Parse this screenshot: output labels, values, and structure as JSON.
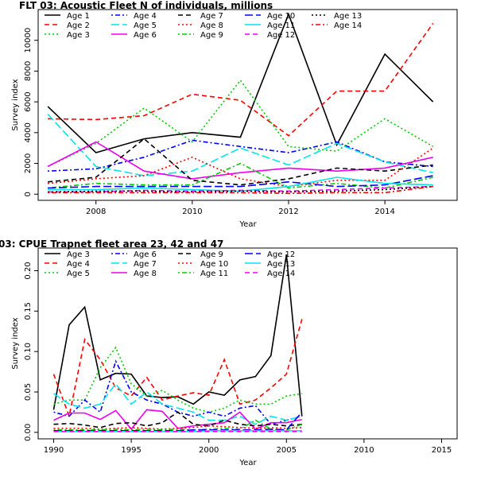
{
  "chart_data": [
    {
      "type": "line",
      "title": "FLT 03: Acoustic Fleet   N of individuals, millions",
      "xlabel": "Year",
      "ylabel": "Survey index",
      "xlim": [
        2006.8,
        2015.5
      ],
      "ylim": [
        -400,
        12000
      ],
      "xticks": [
        2008,
        2010,
        2012,
        2014
      ],
      "yticks": [
        0,
        2000,
        4000,
        6000,
        8000,
        10000
      ],
      "grid": false,
      "legend_position": "top-left",
      "x": [
        2007,
        2008,
        2009,
        2010,
        2011,
        2012,
        2013,
        2014,
        2015
      ],
      "series": [
        {
          "name": "Age 1",
          "color": "#000000",
          "dash": "solid",
          "values": [
            5700,
            2700,
            3600,
            4000,
            3700,
            11700,
            3200,
            9100,
            6000
          ]
        },
        {
          "name": "Age 2",
          "color": "#ff0000",
          "dash": "dashed",
          "values": [
            4900,
            4850,
            5100,
            6500,
            6100,
            3800,
            6700,
            6700,
            11100
          ]
        },
        {
          "name": "Age 3",
          "color": "#00cd00",
          "dash": "dotted",
          "values": [
            1800,
            3300,
            5600,
            3400,
            7400,
            3100,
            2800,
            4900,
            3100
          ]
        },
        {
          "name": "Age 4",
          "color": "#0000ff",
          "dash": "dotdash",
          "values": [
            1500,
            1650,
            2400,
            3500,
            3100,
            2700,
            3400,
            2100,
            1800
          ]
        },
        {
          "name": "Age 5",
          "color": "#00e5ee",
          "dash": "longdash",
          "values": [
            5200,
            1800,
            1200,
            1500,
            3000,
            1900,
            3300,
            2100,
            1400
          ]
        },
        {
          "name": "Age 6",
          "color": "#ee00ee",
          "dash": "solid",
          "values": [
            1800,
            3400,
            1500,
            1000,
            1400,
            1700,
            1500,
            1700,
            2400
          ]
        },
        {
          "name": "Age 7",
          "color": "#000000",
          "dash": "dashed",
          "values": [
            800,
            1100,
            3600,
            900,
            600,
            1000,
            1700,
            1500,
            1900
          ]
        },
        {
          "name": "Age 8",
          "color": "#ff0000",
          "dash": "dotted",
          "values": [
            700,
            1000,
            1200,
            2400,
            1000,
            500,
            900,
            900,
            3000
          ]
        },
        {
          "name": "Age 9",
          "color": "#00cd00",
          "dash": "dotdash",
          "values": [
            400,
            700,
            600,
            600,
            2000,
            400,
            700,
            400,
            1100
          ]
        },
        {
          "name": "Age 10",
          "color": "#0000ff",
          "dash": "longdash",
          "values": [
            400,
            500,
            500,
            500,
            500,
            800,
            500,
            600,
            1200
          ]
        },
        {
          "name": "Age 11",
          "color": "#00e5ee",
          "dash": "solid",
          "values": [
            300,
            300,
            400,
            300,
            200,
            500,
            1100,
            700,
            600
          ]
        },
        {
          "name": "Age 12",
          "color": "#ee00ee",
          "dash": "dashed",
          "values": [
            150,
            150,
            250,
            200,
            250,
            200,
            300,
            400,
            500
          ]
        },
        {
          "name": "Age 13",
          "color": "#000000",
          "dash": "dotted",
          "values": [
            150,
            200,
            200,
            150,
            200,
            150,
            200,
            300,
            500
          ]
        },
        {
          "name": "Age 14",
          "color": "#ff0000",
          "dash": "dotdash",
          "values": [
            100,
            100,
            100,
            100,
            100,
            50,
            100,
            100,
            500
          ]
        }
      ]
    },
    {
      "type": "line",
      "title": "03: CPUE Trapnet fleet area 23, 42 and 47",
      "xlabel": "Year",
      "ylabel": "Survey index",
      "xlim": [
        1989,
        2016
      ],
      "ylim": [
        -0.008,
        0.228
      ],
      "xticks": [
        1990,
        1995,
        2000,
        2005,
        2010,
        2015
      ],
      "yticks": [
        0.0,
        0.05,
        0.1,
        0.15,
        0.2
      ],
      "ytick_labels": [
        "0.00",
        "0.05",
        "0.10",
        "0.15",
        "0.20"
      ],
      "grid": false,
      "legend_position": "top-left",
      "x": [
        1990,
        1991,
        1992,
        1993,
        1994,
        1995,
        1996,
        1997,
        1998,
        1999,
        2000,
        2001,
        2002,
        2003,
        2004,
        2005,
        2006
      ],
      "series": [
        {
          "name": "Age 3",
          "color": "#000000",
          "dash": "solid",
          "values": [
            0.028,
            0.133,
            0.155,
            0.065,
            0.073,
            0.072,
            0.045,
            0.043,
            0.044,
            0.035,
            0.05,
            0.046,
            0.065,
            0.069,
            0.095,
            0.22,
            0.02
          ]
        },
        {
          "name": "Age 4",
          "color": "#ff0000",
          "dash": "dashed",
          "values": [
            0.072,
            0.02,
            0.115,
            0.09,
            0.055,
            0.045,
            0.068,
            0.04,
            0.045,
            0.049,
            0.046,
            0.09,
            0.035,
            0.04,
            0.055,
            0.072,
            0.14
          ]
        },
        {
          "name": "Age 5",
          "color": "#00cd00",
          "dash": "dotted",
          "values": [
            0.035,
            0.04,
            0.04,
            0.08,
            0.105,
            0.06,
            0.045,
            0.052,
            0.04,
            0.03,
            0.025,
            0.03,
            0.04,
            0.035,
            0.035,
            0.045,
            0.048
          ]
        },
        {
          "name": "Age 6",
          "color": "#0000ff",
          "dash": "dotdash",
          "values": [
            0.025,
            0.02,
            0.04,
            0.025,
            0.088,
            0.05,
            0.04,
            0.035,
            0.025,
            0.02,
            0.025,
            0.02,
            0.03,
            0.033,
            0.01,
            0.015,
            0.02
          ]
        },
        {
          "name": "Age 7",
          "color": "#00e5ee",
          "dash": "longdash",
          "values": [
            0.048,
            0.035,
            0.03,
            0.035,
            0.06,
            0.035,
            0.05,
            0.035,
            0.03,
            0.025,
            0.015,
            0.015,
            0.02,
            0.01,
            0.02,
            0.015,
            0.02
          ]
        },
        {
          "name": "Age 8",
          "color": "#ee00ee",
          "dash": "solid",
          "values": [
            0.015,
            0.024,
            0.024,
            0.016,
            0.027,
            0.004,
            0.028,
            0.026,
            0.005,
            0.008,
            0.01,
            0.012,
            0.025,
            0.004,
            0.012,
            0.012,
            0.016
          ]
        },
        {
          "name": "Age 9",
          "color": "#000000",
          "dash": "dashed",
          "values": [
            0.01,
            0.011,
            0.009,
            0.006,
            0.011,
            0.012,
            0.008,
            0.012,
            0.025,
            0.01,
            0.008,
            0.015,
            0.01,
            0.008,
            0.01,
            0.008,
            0.01
          ]
        },
        {
          "name": "Age 10",
          "color": "#ff0000",
          "dash": "dotted",
          "values": [
            0.005,
            0.005,
            0.005,
            0.004,
            0.005,
            0.006,
            0.005,
            0.004,
            0.005,
            0.006,
            0.008,
            0.007,
            0.006,
            0.005,
            0.006,
            0.005,
            0.006
          ]
        },
        {
          "name": "Age 11",
          "color": "#00cd00",
          "dash": "dotdash",
          "values": [
            0.003,
            0.003,
            0.003,
            0.003,
            0.004,
            0.003,
            0.004,
            0.003,
            0.004,
            0.003,
            0.004,
            0.005,
            0.004,
            0.015,
            0.004,
            0.003,
            0.01
          ]
        },
        {
          "name": "Age 12",
          "color": "#0000ff",
          "dash": "longdash",
          "values": [
            0.002,
            0.002,
            0.002,
            0.002,
            0.002,
            0.002,
            0.002,
            0.002,
            0.002,
            0.003,
            0.003,
            0.003,
            0.003,
            0.003,
            0.004,
            0.003,
            0.025
          ]
        },
        {
          "name": "Age 13",
          "color": "#00e5ee",
          "dash": "solid",
          "values": [
            0.001,
            0.001,
            0.001,
            0.001,
            0.001,
            0.001,
            0.001,
            0.001,
            0.001,
            0.001,
            0.002,
            0.002,
            0.002,
            0.002,
            0.002,
            0.002,
            0.002
          ]
        },
        {
          "name": "Age 14",
          "color": "#ee00ee",
          "dash": "dashed",
          "values": [
            0.001,
            0.001,
            0.001,
            0.001,
            0.001,
            0.001,
            0.001,
            0.001,
            0.001,
            0.001,
            0.001,
            0.001,
            0.001,
            0.001,
            0.001,
            0.001,
            0.001
          ]
        }
      ]
    }
  ]
}
